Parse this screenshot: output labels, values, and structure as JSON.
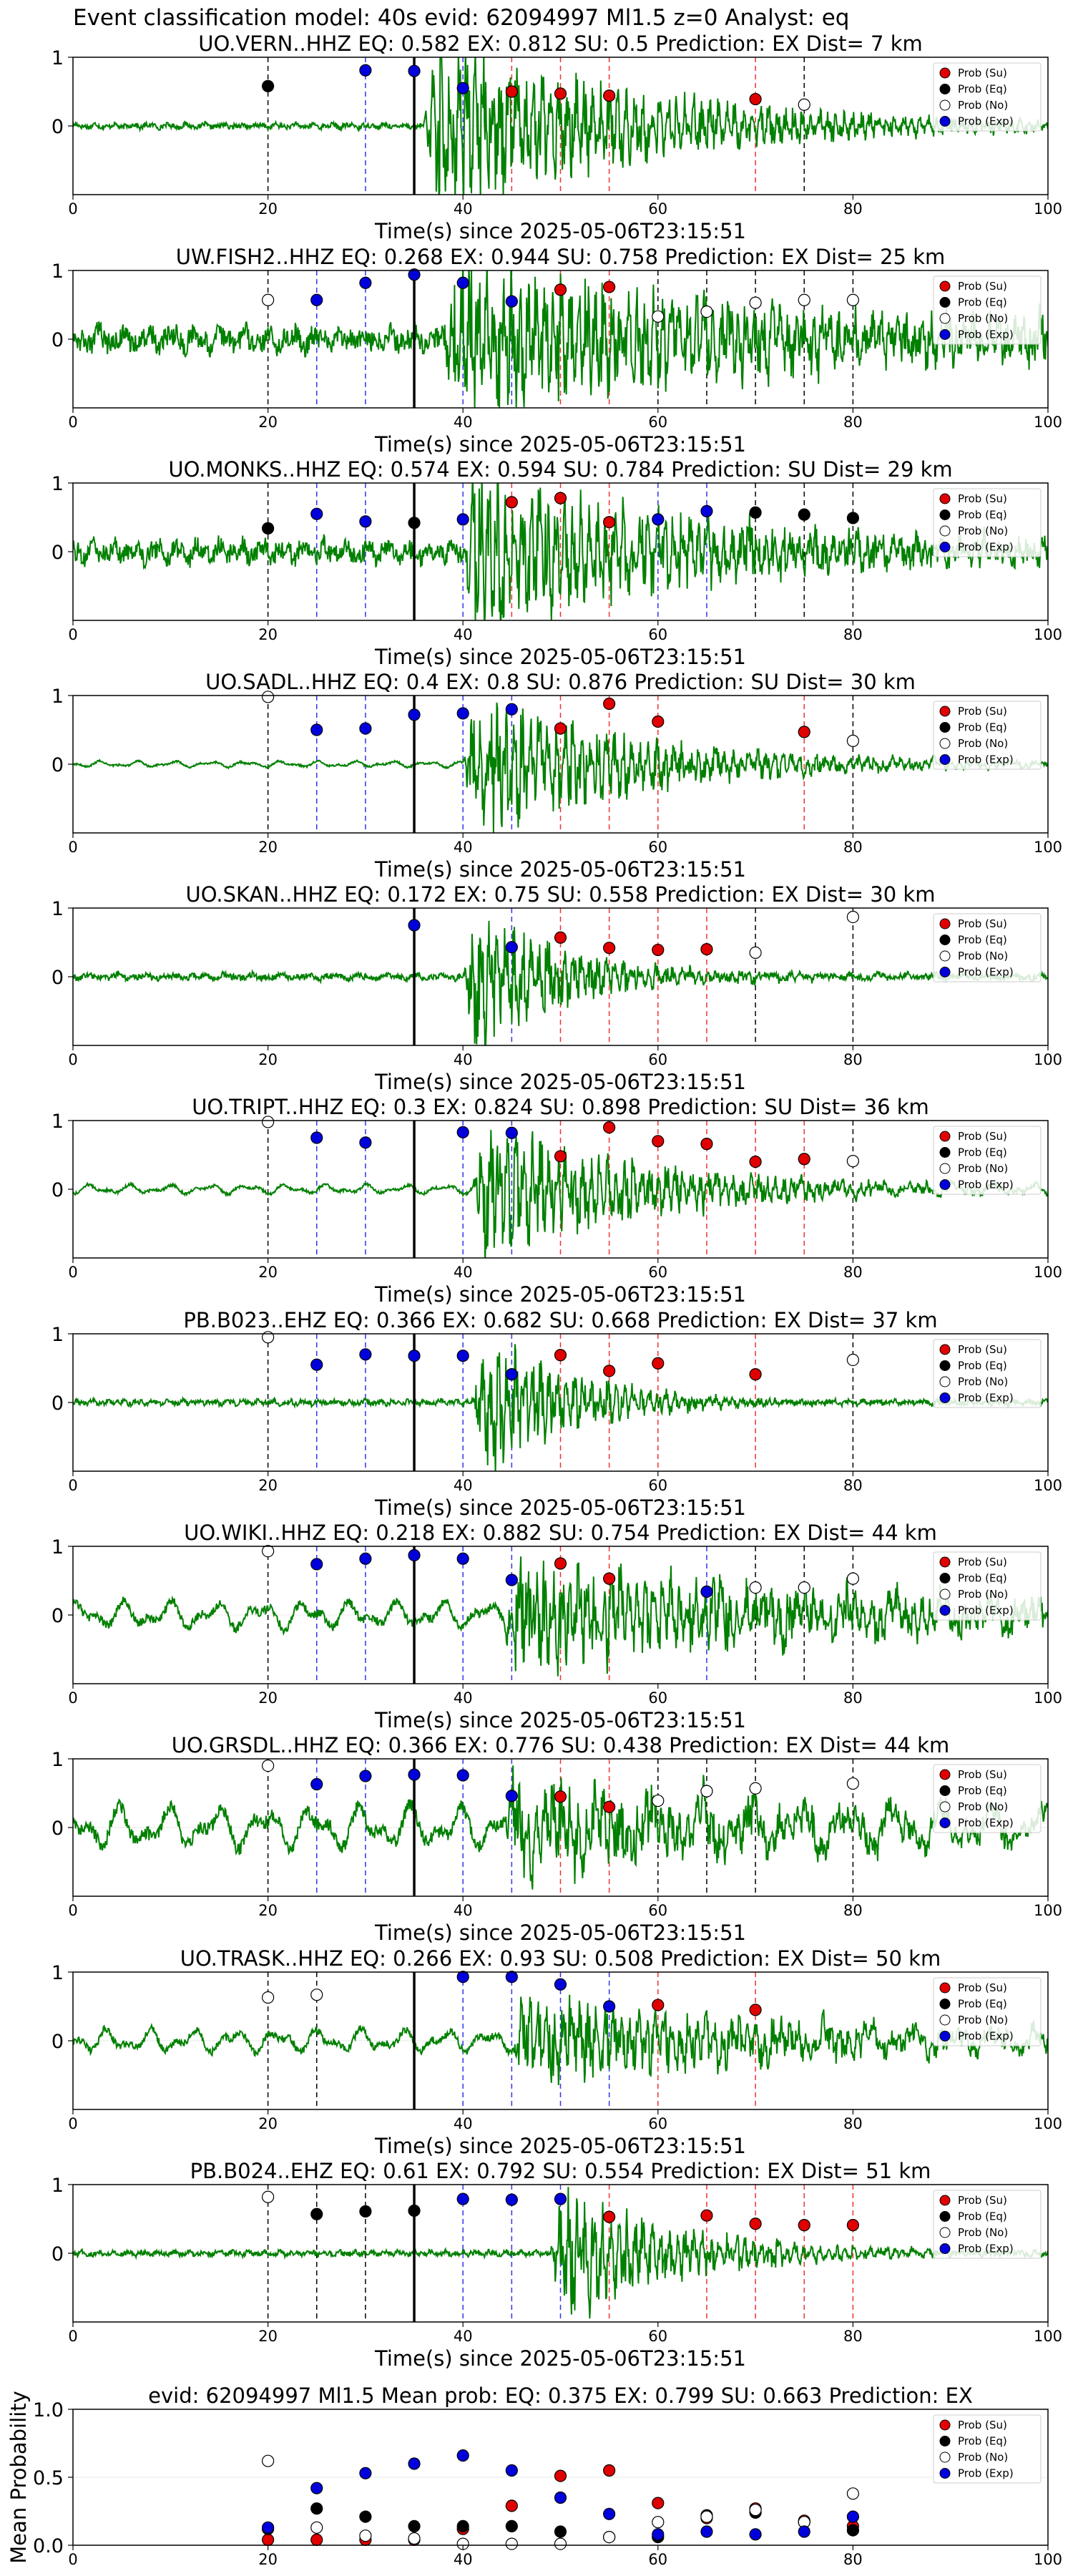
{
  "suptitle": "Event classification model: 40s evid: 62094997 Ml1.5 z=0 Analyst: eq",
  "legend_labels": [
    "Prob (Su)",
    "Prob (Eq)",
    "Prob (No)",
    "Prob (Exp)"
  ],
  "colors": {
    "su": "#e00000",
    "eq": "#000000",
    "no": "#ffffff",
    "exp": "#0000dd",
    "wave": "#008000"
  },
  "chart_data": [
    {
      "type": "line",
      "title": "UO.VERN..HHZ   EQ: 0.582  EX: 0.812  SU: 0.5   Prediction: EX    Dist= 7 km",
      "xlabel": "Time(s) since 2025-05-06T23:15:51",
      "xlim": [
        0,
        100
      ],
      "ylim": [
        -1,
        1
      ],
      "xticks": [
        0,
        20,
        40,
        60,
        80,
        100
      ],
      "yticks": [
        0,
        1
      ],
      "arrival": 35,
      "waveform": {
        "noise": 0.05,
        "onset": 36,
        "amp": 1.2,
        "decay": 22,
        "period": 0.6
      },
      "points": {
        "su": [
          [
            45,
            0.5
          ],
          [
            50,
            0.47
          ],
          [
            55,
            0.44
          ],
          [
            70,
            0.39
          ]
        ],
        "eq": [
          [
            20,
            0.58
          ]
        ],
        "no": [
          [
            75,
            0.31
          ]
        ],
        "exp": [
          [
            30,
            0.81
          ],
          [
            35,
            0.8
          ],
          [
            40,
            0.55
          ]
        ]
      }
    },
    {
      "type": "line",
      "title": "UW.FISH2..HHZ   EQ: 0.268  EX: 0.944  SU: 0.758   Prediction: EX    Dist= 25 km",
      "xlabel": "Time(s) since 2025-05-06T23:15:51",
      "xlim": [
        0,
        100
      ],
      "ylim": [
        -1,
        1
      ],
      "xticks": [
        0,
        20,
        40,
        60,
        80,
        100
      ],
      "yticks": [
        0,
        1
      ],
      "arrival": 35,
      "waveform": {
        "noise": 0.22,
        "onset": 38,
        "amp": 1.0,
        "decay": 40,
        "period": 0.8
      },
      "points": {
        "su": [
          [
            50,
            0.72
          ],
          [
            55,
            0.76
          ]
        ],
        "eq": [],
        "no": [
          [
            20,
            0.57
          ],
          [
            60,
            0.33
          ],
          [
            65,
            0.4
          ],
          [
            70,
            0.53
          ],
          [
            75,
            0.57
          ],
          [
            80,
            0.57
          ]
        ],
        "exp": [
          [
            25,
            0.57
          ],
          [
            30,
            0.82
          ],
          [
            35,
            0.94
          ],
          [
            40,
            0.82
          ],
          [
            45,
            0.55
          ]
        ]
      }
    },
    {
      "type": "line",
      "title": "UO.MONKS..HHZ   EQ: 0.574  EX: 0.594  SU: 0.784   Prediction: SU    Dist= 29 km",
      "xlabel": "Time(s) since 2025-05-06T23:15:51",
      "xlim": [
        0,
        100
      ],
      "ylim": [
        -1,
        1
      ],
      "xticks": [
        0,
        20,
        40,
        60,
        80,
        100
      ],
      "yticks": [
        0,
        1
      ],
      "arrival": 35,
      "waveform": {
        "noise": 0.2,
        "onset": 40,
        "amp": 1.0,
        "decay": 25,
        "period": 0.7
      },
      "points": {
        "su": [
          [
            45,
            0.72
          ],
          [
            50,
            0.78
          ],
          [
            55,
            0.43
          ]
        ],
        "eq": [
          [
            20,
            0.34
          ],
          [
            35,
            0.42
          ],
          [
            70,
            0.57
          ],
          [
            75,
            0.54
          ],
          [
            80,
            0.49
          ]
        ],
        "no": [],
        "exp": [
          [
            25,
            0.55
          ],
          [
            30,
            0.44
          ],
          [
            40,
            0.47
          ],
          [
            60,
            0.47
          ],
          [
            65,
            0.59
          ]
        ]
      }
    },
    {
      "type": "line",
      "title": "UO.SADL..HHZ   EQ: 0.4  EX: 0.8  SU: 0.876   Prediction: SU    Dist= 30 km",
      "xlabel": "Time(s) since 2025-05-06T23:15:51",
      "xlim": [
        0,
        100
      ],
      "ylim": [
        -1,
        1
      ],
      "xticks": [
        0,
        20,
        40,
        60,
        80,
        100
      ],
      "yticks": [
        0,
        1
      ],
      "arrival": 35,
      "waveform": {
        "noise": 0.08,
        "onset": 40,
        "amp": 0.95,
        "decay": 18,
        "period": 1.2
      },
      "points": {
        "su": [
          [
            50,
            0.52
          ],
          [
            55,
            0.88
          ],
          [
            60,
            0.62
          ],
          [
            75,
            0.47
          ]
        ],
        "eq": [],
        "no": [
          [
            20,
            0.98
          ],
          [
            80,
            0.34
          ]
        ],
        "exp": [
          [
            25,
            0.5
          ],
          [
            30,
            0.52
          ],
          [
            35,
            0.72
          ],
          [
            40,
            0.74
          ],
          [
            45,
            0.8
          ]
        ]
      }
    },
    {
      "type": "line",
      "title": "UO.SKAN..HHZ   EQ: 0.172  EX: 0.75  SU: 0.558   Prediction: EX    Dist= 30 km",
      "xlabel": "Time(s) since 2025-05-06T23:15:51",
      "xlim": [
        0,
        100
      ],
      "ylim": [
        -1,
        1
      ],
      "xticks": [
        0,
        20,
        40,
        60,
        80,
        100
      ],
      "yticks": [
        0,
        1
      ],
      "arrival": 35,
      "waveform": {
        "noise": 0.06,
        "onset": 40,
        "amp": 1.0,
        "decay": 10,
        "period": 0.9
      },
      "points": {
        "su": [
          [
            50,
            0.57
          ],
          [
            55,
            0.42
          ],
          [
            60,
            0.39
          ],
          [
            65,
            0.4
          ]
        ],
        "eq": [],
        "no": [
          [
            70,
            0.35
          ],
          [
            80,
            0.87
          ]
        ],
        "exp": [
          [
            35,
            0.75
          ],
          [
            45,
            0.43
          ]
        ]
      }
    },
    {
      "type": "line",
      "title": "UO.TRIPT..HHZ   EQ: 0.3  EX: 0.824  SU: 0.898   Prediction: SU    Dist= 36 km",
      "xlabel": "Time(s) since 2025-05-06T23:15:51",
      "xlim": [
        0,
        100
      ],
      "ylim": [
        -1,
        1
      ],
      "xticks": [
        0,
        20,
        40,
        60,
        80,
        100
      ],
      "yticks": [
        0,
        1
      ],
      "arrival": 35,
      "waveform": {
        "noise": 0.12,
        "onset": 41,
        "amp": 0.9,
        "decay": 18,
        "period": 1.3
      },
      "points": {
        "su": [
          [
            50,
            0.48
          ],
          [
            55,
            0.9
          ],
          [
            60,
            0.7
          ],
          [
            65,
            0.66
          ],
          [
            70,
            0.4
          ],
          [
            75,
            0.44
          ]
        ],
        "eq": [],
        "no": [
          [
            20,
            0.98
          ],
          [
            80,
            0.41
          ]
        ],
        "exp": [
          [
            25,
            0.75
          ],
          [
            30,
            0.68
          ],
          [
            40,
            0.83
          ],
          [
            45,
            0.82
          ]
        ]
      }
    },
    {
      "type": "line",
      "title": "PB.B023..EHZ   EQ: 0.366  EX: 0.682  SU: 0.668   Prediction: EX    Dist= 37 km",
      "xlabel": "Time(s) since 2025-05-06T23:15:51",
      "xlim": [
        0,
        100
      ],
      "ylim": [
        -1,
        1
      ],
      "xticks": [
        0,
        20,
        40,
        60,
        80,
        100
      ],
      "yticks": [
        0,
        1
      ],
      "arrival": 35,
      "waveform": {
        "noise": 0.05,
        "onset": 41,
        "amp": 1.0,
        "decay": 10,
        "period": 0.5
      },
      "points": {
        "su": [
          [
            50,
            0.69
          ],
          [
            55,
            0.46
          ],
          [
            60,
            0.57
          ],
          [
            70,
            0.41
          ]
        ],
        "eq": [],
        "no": [
          [
            20,
            0.95
          ],
          [
            80,
            0.62
          ]
        ],
        "exp": [
          [
            25,
            0.55
          ],
          [
            30,
            0.7
          ],
          [
            35,
            0.68
          ],
          [
            40,
            0.68
          ],
          [
            45,
            0.41
          ]
        ]
      }
    },
    {
      "type": "line",
      "title": "UO.WIKI..HHZ   EQ: 0.218  EX: 0.882  SU: 0.754   Prediction: EX    Dist= 44 km",
      "xlabel": "Time(s) since 2025-05-06T23:15:51",
      "xlim": [
        0,
        100
      ],
      "ylim": [
        -1,
        1
      ],
      "xticks": [
        0,
        20,
        40,
        60,
        80,
        100
      ],
      "yticks": [
        0,
        1
      ],
      "arrival": 35,
      "waveform": {
        "noise": 0.35,
        "onset": 44,
        "amp": 0.7,
        "decay": 40,
        "period": 1.5
      },
      "points": {
        "su": [
          [
            50,
            0.75
          ],
          [
            55,
            0.53
          ]
        ],
        "eq": [],
        "no": [
          [
            20,
            0.93
          ],
          [
            70,
            0.4
          ],
          [
            75,
            0.4
          ],
          [
            80,
            0.53
          ]
        ],
        "exp": [
          [
            25,
            0.74
          ],
          [
            30,
            0.82
          ],
          [
            35,
            0.87
          ],
          [
            40,
            0.82
          ],
          [
            45,
            0.51
          ],
          [
            65,
            0.34
          ]
        ]
      }
    },
    {
      "type": "line",
      "title": "UO.GRSDL..HHZ   EQ: 0.366  EX: 0.776  SU: 0.438   Prediction: EX    Dist= 44 km",
      "xlabel": "Time(s) since 2025-05-06T23:15:51",
      "xlim": [
        0,
        100
      ],
      "ylim": [
        -1,
        1
      ],
      "xticks": [
        0,
        20,
        40,
        60,
        80,
        100
      ],
      "yticks": [
        0,
        1
      ],
      "arrival": 35,
      "waveform": {
        "noise": 0.55,
        "onset": 44,
        "amp": 0.6,
        "decay": 30,
        "period": 1.6
      },
      "points": {
        "su": [
          [
            50,
            0.45
          ],
          [
            55,
            0.3
          ]
        ],
        "eq": [],
        "no": [
          [
            20,
            0.9
          ],
          [
            60,
            0.39
          ],
          [
            65,
            0.53
          ],
          [
            70,
            0.57
          ],
          [
            80,
            0.64
          ]
        ],
        "exp": [
          [
            25,
            0.63
          ],
          [
            30,
            0.75
          ],
          [
            35,
            0.77
          ],
          [
            40,
            0.76
          ],
          [
            45,
            0.46
          ]
        ]
      }
    },
    {
      "type": "line",
      "title": "UO.TRASK..HHZ   EQ: 0.266  EX: 0.93  SU: 0.508   Prediction: EX    Dist= 50 km",
      "xlabel": "Time(s) since 2025-05-06T23:15:51",
      "xlim": [
        0,
        100
      ],
      "ylim": [
        -1,
        1
      ],
      "xticks": [
        0,
        20,
        40,
        60,
        80,
        100
      ],
      "yticks": [
        0,
        1
      ],
      "arrival": 35,
      "waveform": {
        "noise": 0.3,
        "onset": 45,
        "amp": 0.6,
        "decay": 30,
        "period": 1.4
      },
      "points": {
        "su": [
          [
            60,
            0.52
          ],
          [
            70,
            0.45
          ]
        ],
        "eq": [],
        "no": [
          [
            20,
            0.63
          ],
          [
            25,
            0.67
          ]
        ],
        "exp": [
          [
            40,
            0.93
          ],
          [
            45,
            0.93
          ],
          [
            50,
            0.82
          ],
          [
            55,
            0.5
          ]
        ]
      }
    },
    {
      "type": "line",
      "title": "PB.B024..EHZ   EQ: 0.61  EX: 0.792  SU: 0.554   Prediction: EX    Dist= 51 km",
      "xlabel": "Time(s) since 2025-05-06T23:15:51",
      "xlim": [
        0,
        100
      ],
      "ylim": [
        -1,
        1
      ],
      "xticks": [
        0,
        20,
        40,
        60,
        80,
        100
      ],
      "yticks": [
        0,
        1
      ],
      "arrival": 35,
      "waveform": {
        "noise": 0.05,
        "onset": 49,
        "amp": 1.0,
        "decay": 12,
        "period": 0.5
      },
      "points": {
        "su": [
          [
            55,
            0.53
          ],
          [
            65,
            0.55
          ],
          [
            70,
            0.43
          ],
          [
            75,
            0.41
          ],
          [
            80,
            0.41
          ]
        ],
        "eq": [
          [
            25,
            0.57
          ],
          [
            30,
            0.61
          ],
          [
            35,
            0.62
          ]
        ],
        "no": [
          [
            20,
            0.82
          ]
        ],
        "exp": [
          [
            40,
            0.79
          ],
          [
            45,
            0.78
          ],
          [
            50,
            0.79
          ]
        ]
      }
    },
    {
      "type": "scatter",
      "title": "evid: 62094997  Ml1.5   Mean prob:   EQ: 0.375  EX: 0.799  SU: 0.663   Prediction: EX",
      "xlabel": "",
      "ylabel": "Mean Probability",
      "xlim": [
        0,
        100
      ],
      "ylim": [
        0,
        1
      ],
      "xticks": [
        0,
        20,
        40,
        60,
        80,
        100
      ],
      "yticks": [
        0.0,
        0.5,
        1.0
      ],
      "points": {
        "su": [
          [
            20,
            0.04
          ],
          [
            25,
            0.04
          ],
          [
            30,
            0.04
          ],
          [
            35,
            0.04
          ],
          [
            40,
            0.12
          ],
          [
            45,
            0.29
          ],
          [
            50,
            0.51
          ],
          [
            55,
            0.55
          ],
          [
            60,
            0.31
          ],
          [
            65,
            0.2
          ],
          [
            70,
            0.27
          ],
          [
            75,
            0.18
          ],
          [
            80,
            0.14
          ]
        ],
        "eq": [
          [
            20,
            0.12
          ],
          [
            25,
            0.27
          ],
          [
            30,
            0.21
          ],
          [
            35,
            0.14
          ],
          [
            40,
            0.14
          ],
          [
            45,
            0.14
          ],
          [
            50,
            0.1
          ],
          [
            55,
            0.06
          ],
          [
            60,
            0.06
          ],
          [
            65,
            0.22
          ],
          [
            70,
            0.24
          ],
          [
            75,
            0.17
          ],
          [
            80,
            0.11
          ]
        ],
        "no": [
          [
            20,
            0.62
          ],
          [
            25,
            0.13
          ],
          [
            30,
            0.07
          ],
          [
            35,
            0.05
          ],
          [
            40,
            0.01
          ],
          [
            45,
            0.01
          ],
          [
            50,
            0.01
          ],
          [
            55,
            0.06
          ],
          [
            60,
            0.17
          ],
          [
            65,
            0.21
          ],
          [
            70,
            0.26
          ],
          [
            75,
            0.17
          ],
          [
            80,
            0.38
          ]
        ],
        "exp": [
          [
            20,
            0.13
          ],
          [
            25,
            0.42
          ],
          [
            30,
            0.53
          ],
          [
            35,
            0.6
          ],
          [
            40,
            0.66
          ],
          [
            45,
            0.55
          ],
          [
            50,
            0.35
          ],
          [
            55,
            0.23
          ],
          [
            60,
            0.08
          ],
          [
            65,
            0.1
          ],
          [
            70,
            0.08
          ],
          [
            75,
            0.1
          ],
          [
            80,
            0.21
          ]
        ]
      }
    }
  ]
}
